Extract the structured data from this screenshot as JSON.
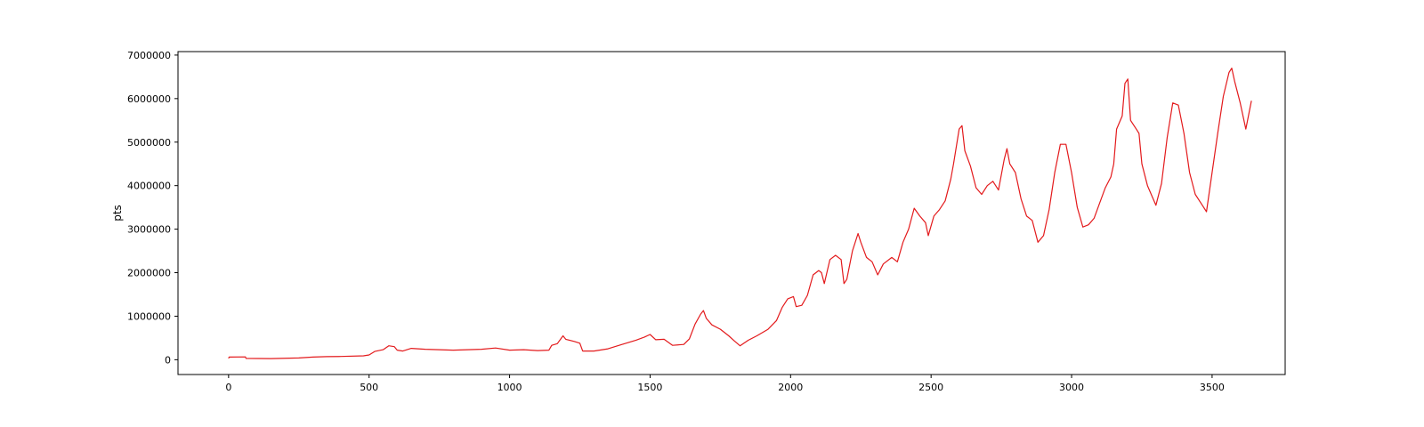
{
  "chart_data": {
    "type": "line",
    "title": "",
    "xlabel": "",
    "ylabel": "pts",
    "xlim": [
      -180,
      3760
    ],
    "ylim": [
      -340000,
      7080000
    ],
    "grid": false,
    "legend": "none",
    "x_ticks": [
      0,
      500,
      1000,
      1500,
      2000,
      2500,
      3000,
      3500
    ],
    "y_ticks": [
      0,
      1000000,
      2000000,
      3000000,
      4000000,
      5000000,
      6000000,
      7000000
    ],
    "series": [
      {
        "color": "#e31a1c",
        "points": [
          [
            0,
            30000
          ],
          [
            2,
            60000
          ],
          [
            60,
            65000
          ],
          [
            62,
            30000
          ],
          [
            150,
            25000
          ],
          [
            250,
            40000
          ],
          [
            300,
            60000
          ],
          [
            350,
            70000
          ],
          [
            400,
            75000
          ],
          [
            480,
            90000
          ],
          [
            500,
            110000
          ],
          [
            520,
            190000
          ],
          [
            550,
            230000
          ],
          [
            570,
            320000
          ],
          [
            590,
            300000
          ],
          [
            600,
            220000
          ],
          [
            620,
            200000
          ],
          [
            650,
            260000
          ],
          [
            700,
            240000
          ],
          [
            750,
            230000
          ],
          [
            800,
            220000
          ],
          [
            850,
            230000
          ],
          [
            900,
            240000
          ],
          [
            950,
            270000
          ],
          [
            1000,
            220000
          ],
          [
            1050,
            230000
          ],
          [
            1100,
            210000
          ],
          [
            1140,
            220000
          ],
          [
            1150,
            330000
          ],
          [
            1170,
            370000
          ],
          [
            1190,
            550000
          ],
          [
            1200,
            470000
          ],
          [
            1230,
            420000
          ],
          [
            1250,
            380000
          ],
          [
            1260,
            200000
          ],
          [
            1300,
            200000
          ],
          [
            1350,
            250000
          ],
          [
            1400,
            350000
          ],
          [
            1450,
            450000
          ],
          [
            1480,
            520000
          ],
          [
            1500,
            580000
          ],
          [
            1520,
            460000
          ],
          [
            1550,
            470000
          ],
          [
            1580,
            330000
          ],
          [
            1620,
            350000
          ],
          [
            1640,
            480000
          ],
          [
            1660,
            820000
          ],
          [
            1680,
            1050000
          ],
          [
            1690,
            1130000
          ],
          [
            1700,
            950000
          ],
          [
            1720,
            800000
          ],
          [
            1750,
            700000
          ],
          [
            1780,
            550000
          ],
          [
            1800,
            430000
          ],
          [
            1820,
            320000
          ],
          [
            1850,
            450000
          ],
          [
            1880,
            550000
          ],
          [
            1920,
            700000
          ],
          [
            1950,
            900000
          ],
          [
            1970,
            1200000
          ],
          [
            1990,
            1400000
          ],
          [
            2010,
            1450000
          ],
          [
            2020,
            1220000
          ],
          [
            2040,
            1250000
          ],
          [
            2060,
            1480000
          ],
          [
            2080,
            1950000
          ],
          [
            2100,
            2050000
          ],
          [
            2110,
            2000000
          ],
          [
            2120,
            1750000
          ],
          [
            2140,
            2300000
          ],
          [
            2160,
            2400000
          ],
          [
            2180,
            2300000
          ],
          [
            2190,
            1750000
          ],
          [
            2200,
            1850000
          ],
          [
            2220,
            2500000
          ],
          [
            2240,
            2900000
          ],
          [
            2250,
            2700000
          ],
          [
            2270,
            2350000
          ],
          [
            2290,
            2250000
          ],
          [
            2310,
            1950000
          ],
          [
            2330,
            2200000
          ],
          [
            2360,
            2350000
          ],
          [
            2380,
            2250000
          ],
          [
            2400,
            2700000
          ],
          [
            2420,
            3000000
          ],
          [
            2440,
            3480000
          ],
          [
            2460,
            3300000
          ],
          [
            2480,
            3150000
          ],
          [
            2490,
            2850000
          ],
          [
            2510,
            3300000
          ],
          [
            2530,
            3450000
          ],
          [
            2550,
            3650000
          ],
          [
            2570,
            4150000
          ],
          [
            2580,
            4500000
          ],
          [
            2600,
            5300000
          ],
          [
            2610,
            5380000
          ],
          [
            2620,
            4800000
          ],
          [
            2640,
            4450000
          ],
          [
            2660,
            3950000
          ],
          [
            2680,
            3800000
          ],
          [
            2700,
            4000000
          ],
          [
            2720,
            4100000
          ],
          [
            2740,
            3900000
          ],
          [
            2760,
            4600000
          ],
          [
            2770,
            4850000
          ],
          [
            2780,
            4500000
          ],
          [
            2800,
            4300000
          ],
          [
            2820,
            3700000
          ],
          [
            2840,
            3300000
          ],
          [
            2860,
            3200000
          ],
          [
            2880,
            2700000
          ],
          [
            2900,
            2850000
          ],
          [
            2920,
            3450000
          ],
          [
            2940,
            4300000
          ],
          [
            2960,
            4950000
          ],
          [
            2980,
            4950000
          ],
          [
            3000,
            4300000
          ],
          [
            3020,
            3500000
          ],
          [
            3040,
            3050000
          ],
          [
            3060,
            3100000
          ],
          [
            3080,
            3250000
          ],
          [
            3100,
            3600000
          ],
          [
            3120,
            3950000
          ],
          [
            3140,
            4200000
          ],
          [
            3150,
            4500000
          ],
          [
            3160,
            5300000
          ],
          [
            3180,
            5600000
          ],
          [
            3190,
            6350000
          ],
          [
            3200,
            6450000
          ],
          [
            3210,
            5500000
          ],
          [
            3230,
            5300000
          ],
          [
            3240,
            5200000
          ],
          [
            3250,
            4500000
          ],
          [
            3270,
            4000000
          ],
          [
            3300,
            3550000
          ],
          [
            3320,
            4050000
          ],
          [
            3340,
            5100000
          ],
          [
            3360,
            5900000
          ],
          [
            3380,
            5850000
          ],
          [
            3400,
            5200000
          ],
          [
            3420,
            4300000
          ],
          [
            3440,
            3800000
          ],
          [
            3460,
            3600000
          ],
          [
            3480,
            3400000
          ],
          [
            3500,
            4300000
          ],
          [
            3520,
            5200000
          ],
          [
            3540,
            6050000
          ],
          [
            3560,
            6600000
          ],
          [
            3570,
            6700000
          ],
          [
            3580,
            6400000
          ],
          [
            3600,
            5900000
          ],
          [
            3620,
            5300000
          ],
          [
            3640,
            5950000
          ]
        ]
      }
    ]
  }
}
